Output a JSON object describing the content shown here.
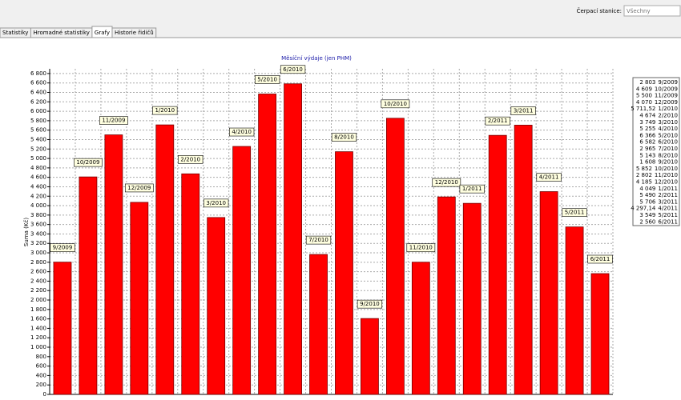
{
  "toolbar": {
    "station_label": "Čerpací stanice:",
    "station_value": "Všechny"
  },
  "tabs": [
    "Statistiky",
    "Hromadné statistiky",
    "Grafy",
    "Historie řidičů"
  ],
  "chart_data": {
    "type": "bar",
    "title": "Měsíční výdaje (jen PHM)",
    "y_label": "Suma (Kč)",
    "color": "#ff0000",
    "grid": true,
    "legend": "right",
    "categories": [
      "9/2009",
      "10/2009",
      "11/2009",
      "12/2009",
      "1/2010",
      "2/2010",
      "3/2010",
      "4/2010",
      "5/2010",
      "6/2010",
      "7/2010",
      "8/2010",
      "9/2010",
      "10/2010",
      "11/2010",
      "12/2010",
      "1/2011",
      "2/2011",
      "3/2011",
      "4/2011",
      "5/2011",
      "6/2011"
    ],
    "values": [
      2803,
      4609,
      5500,
      4070,
      5711.52,
      4674,
      3749,
      5255,
      6366,
      6582,
      2965,
      5143,
      1608,
      5852,
      2802,
      4185,
      4049,
      5490,
      5706,
      4297.14,
      3549,
      2560
    ],
    "value_labels": [
      "2 803",
      "4 609",
      "5 500",
      "4 070",
      "5 711,52",
      "4 674",
      "3 749",
      "5 255",
      "6 366",
      "6 582",
      "2 965",
      "5 143",
      "1 608",
      "5 852",
      "2 802",
      "4 185",
      "4 049",
      "5 490",
      "5 706",
      "4 297,14",
      "3 549",
      "2 560"
    ],
    "ylim": [
      0,
      6900
    ],
    "yticks": [
      0,
      200,
      400,
      600,
      800,
      {
        "value": 1000,
        "label": "1 000"
      },
      {
        "value": 1200,
        "label": "1 200"
      },
      {
        "value": 1400,
        "label": "1 400"
      },
      {
        "value": 1600,
        "label": "1 600"
      },
      {
        "value": 1800,
        "label": "1 800"
      },
      {
        "value": 2000,
        "label": "2 000"
      },
      {
        "value": 2200,
        "label": "2 200"
      },
      {
        "value": 2400,
        "label": "2 400"
      },
      {
        "value": 2600,
        "label": "2 600"
      },
      {
        "value": 2800,
        "label": "2 800"
      },
      {
        "value": 3000,
        "label": "3 000"
      },
      {
        "value": 3200,
        "label": "3 200"
      },
      {
        "value": 3400,
        "label": "3 400"
      },
      {
        "value": 3600,
        "label": "3 600"
      },
      {
        "value": 3800,
        "label": "3 800"
      },
      {
        "value": 4000,
        "label": "4 000"
      },
      {
        "value": 4200,
        "label": "4 200"
      },
      {
        "value": 4400,
        "label": "4 400"
      },
      {
        "value": 4600,
        "label": "4 600"
      },
      {
        "value": 4800,
        "label": "4 800"
      },
      {
        "value": 5000,
        "label": "5 000"
      },
      {
        "value": 5200,
        "label": "5 200"
      },
      {
        "value": 5400,
        "label": "5 400"
      },
      {
        "value": 5600,
        "label": "5 600"
      },
      {
        "value": 5800,
        "label": "5 800"
      },
      {
        "value": 6000,
        "label": "6 000"
      },
      {
        "value": 6200,
        "label": "6 200"
      },
      {
        "value": 6400,
        "label": "6 400"
      },
      {
        "value": 6600,
        "label": "6 600"
      },
      {
        "value": 6800,
        "label": "6 800"
      }
    ]
  }
}
